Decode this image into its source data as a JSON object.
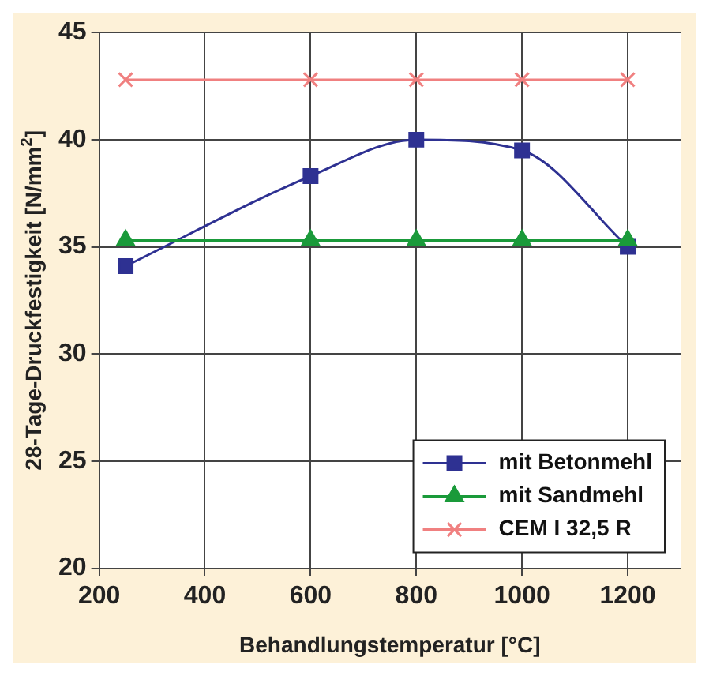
{
  "chart_data": {
    "type": "line",
    "xlabel": "Behandlungstemperatur [°C]",
    "ylabel": "28-Tage-Druckfestigkeit [N/mm$^{2}$]",
    "x": [
      250,
      600,
      800,
      1000,
      1200
    ],
    "series": [
      {
        "name": "mit Betonmehl",
        "color": "#2e3192",
        "marker": "square",
        "values": [
          34.1,
          38.3,
          40.0,
          39.5,
          35.0
        ]
      },
      {
        "name": "mit Sandmehl",
        "color": "#1a9a3a",
        "marker": "triangle",
        "values": [
          35.3,
          35.3,
          35.3,
          35.3,
          35.3
        ]
      },
      {
        "name": "CEM I 32,5 R",
        "color": "#f08080",
        "marker": "cross",
        "values": [
          42.8,
          42.8,
          42.8,
          42.8,
          42.8
        ]
      }
    ],
    "xlim": [
      200,
      1300
    ],
    "xticks": [
      200,
      400,
      600,
      800,
      1000,
      1200
    ],
    "ylim": [
      20,
      45
    ],
    "yticks": [
      20,
      25,
      30,
      35,
      40,
      45
    ],
    "grid": true,
    "legend": "bottom right",
    "line_style": "solid"
  }
}
